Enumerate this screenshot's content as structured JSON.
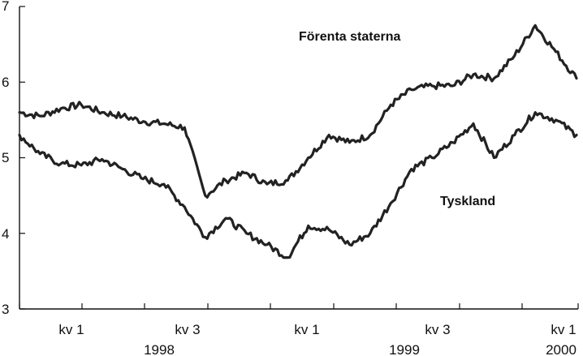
{
  "chart_data": {
    "type": "line",
    "title": "",
    "xlabel": "",
    "ylabel": "",
    "ylim": [
      3,
      7
    ],
    "y_ticks": [
      3,
      4,
      5,
      6,
      7
    ],
    "grid": false,
    "x_ticks": [
      "kv 1",
      "kv 3",
      "kv 1",
      "kv 3",
      "kv 1"
    ],
    "year_labels": [
      "1998",
      "1999",
      "2000"
    ],
    "x": [
      "1997-12",
      "1998-01",
      "1998-02",
      "1998-03",
      "1998-04",
      "1998-05",
      "1998-06",
      "1998-07",
      "1998-08",
      "1998-09",
      "1998-10",
      "1998-11",
      "1998-12",
      "1999-01",
      "1999-02",
      "1999-03",
      "1999-04",
      "1999-05",
      "1999-06",
      "1999-07",
      "1999-08",
      "1999-09",
      "1999-10",
      "1999-11",
      "1999-12",
      "2000-01",
      "2000-02",
      "2000-03"
    ],
    "series": [
      {
        "name": "Förenta staterna",
        "color": "#222222",
        "values": [
          5.6,
          5.55,
          5.65,
          5.7,
          5.6,
          5.55,
          5.48,
          5.45,
          5.4,
          4.5,
          4.7,
          4.8,
          4.65,
          4.7,
          5.0,
          5.3,
          5.2,
          5.3,
          5.7,
          5.9,
          5.95,
          5.95,
          6.1,
          6.05,
          6.35,
          6.75,
          6.4,
          6.05
        ]
      },
      {
        "name": "Tyskland",
        "color": "#222222",
        "values": [
          5.3,
          5.05,
          4.92,
          4.9,
          4.98,
          4.85,
          4.72,
          4.65,
          4.35,
          3.95,
          4.2,
          4.0,
          3.85,
          3.68,
          4.1,
          4.05,
          3.85,
          4.0,
          4.4,
          4.85,
          5.0,
          5.2,
          5.45,
          5.0,
          5.3,
          5.6,
          5.5,
          5.3
        ]
      }
    ]
  }
}
